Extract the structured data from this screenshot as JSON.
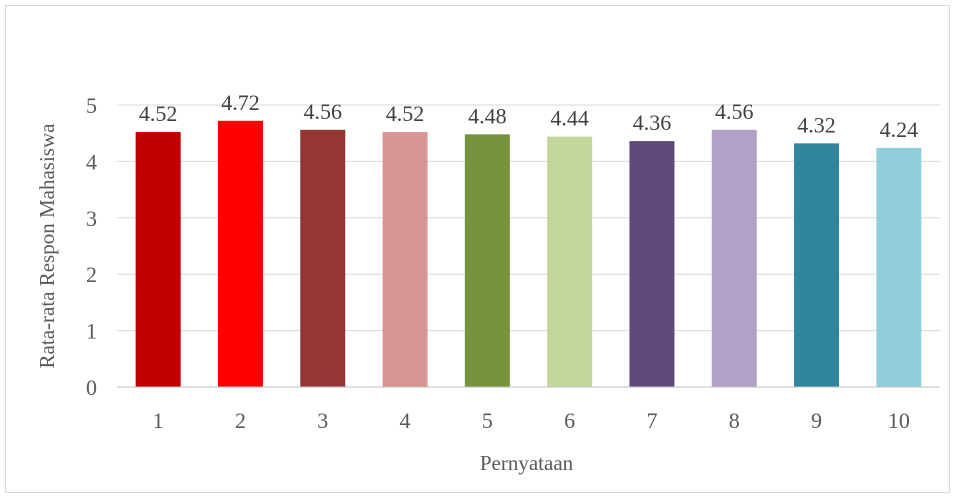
{
  "chart_data": {
    "type": "bar",
    "xlabel": "Pernyataan",
    "ylabel": "Rata-rata Respon Mahasiswa",
    "categories": [
      "1",
      "2",
      "3",
      "4",
      "5",
      "6",
      "7",
      "8",
      "9",
      "10"
    ],
    "values": [
      4.52,
      4.72,
      4.56,
      4.52,
      4.48,
      4.44,
      4.36,
      4.56,
      4.32,
      4.24
    ],
    "value_labels": [
      "4.52",
      "4.72",
      "4.56",
      "4.52",
      "4.48",
      "4.44",
      "4.36",
      "4.56",
      "4.32",
      "4.24"
    ],
    "y_ticks": [
      "0",
      "1",
      "2",
      "3",
      "4",
      "5"
    ],
    "ylim": [
      0,
      5
    ],
    "grid": true,
    "bar_colors": [
      "#C00000",
      "#FF0000",
      "#943634",
      "#D99594",
      "#76923C",
      "#C3D69B",
      "#5F497A",
      "#B2A1C7",
      "#31859B",
      "#92CDDC"
    ]
  }
}
